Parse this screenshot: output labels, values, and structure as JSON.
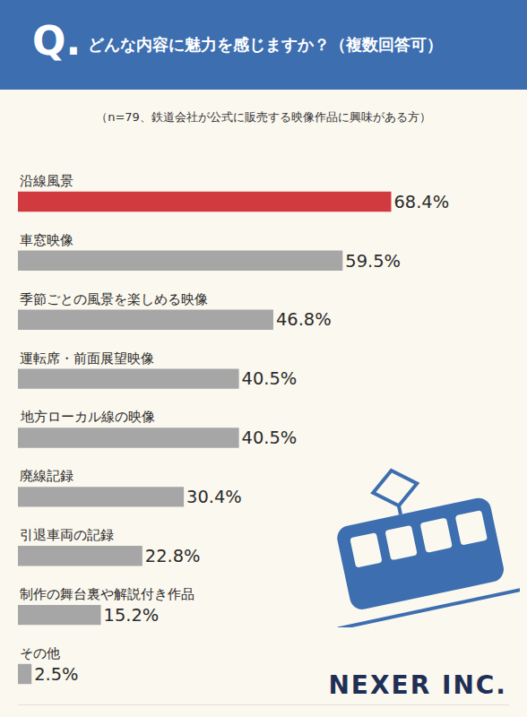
{
  "chart_data": {
    "type": "bar",
    "orientation": "horizontal",
    "header_label": "Q.",
    "title": "どんな内容に魅力を感じますか？（複数回答可）",
    "subtitle": "（n=79、鉄道会社が公式に販売する映像作品に興味がある方）",
    "categories": [
      "沿線風景",
      "車窓映像",
      "季節ごとの風景を楽しめる映像",
      "運転席・前面展望映像",
      "地方ローカル線の映像",
      "廃線記録",
      "引退車両の記録",
      "制作の舞台裏や解説付き作品",
      "その他"
    ],
    "values": [
      68.4,
      59.5,
      46.8,
      40.5,
      40.5,
      30.4,
      22.8,
      15.2,
      2.5
    ],
    "value_labels": [
      "68.4%",
      "59.5%",
      "46.8%",
      "40.5%",
      "40.5%",
      "30.4%",
      "22.8%",
      "15.2%",
      "2.5%"
    ],
    "colors": [
      "#d13a3f",
      "#a6a6a6",
      "#a6a6a6",
      "#a6a6a6",
      "#a6a6a6",
      "#a6a6a6",
      "#a6a6a6",
      "#a6a6a6",
      "#a6a6a6"
    ],
    "data_labels": true,
    "tick_labels": false,
    "grid": false,
    "xlim": [
      0,
      90
    ],
    "source": "NEXER INC."
  }
}
